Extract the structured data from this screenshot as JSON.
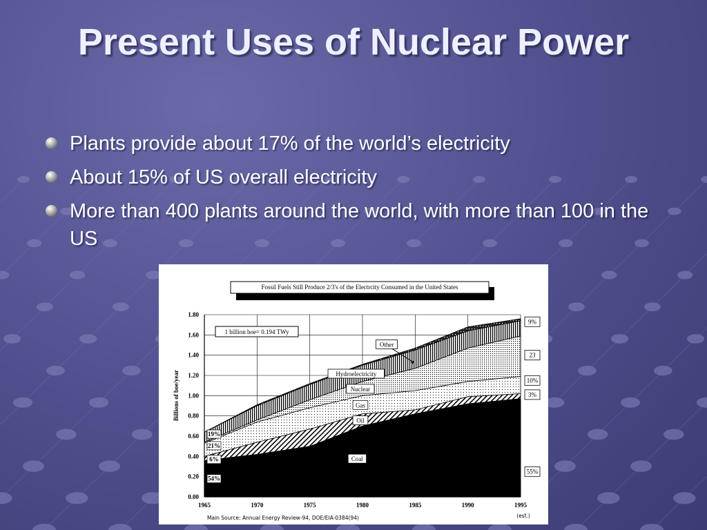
{
  "slide": {
    "title": "Present Uses of Nuclear Power",
    "bullets": [
      "Plants provide about 17% of the world’s electricity",
      "About 15% of US overall electricity",
      "More than 400 plants around the world, with more than 100 in the US"
    ]
  },
  "chart_data": {
    "type": "area",
    "stacked": true,
    "title": "Fossil Fuels Still Produce 2/3's of the Electrcity Consumed in the United States",
    "ylabel": "Billions of boe/year",
    "xlabel": "",
    "x": [
      1965,
      1970,
      1975,
      1980,
      1985,
      1990,
      1995
    ],
    "x_tick_labels": [
      "1965",
      "1970",
      "1975",
      "1980",
      "1985",
      "1990",
      "1995"
    ],
    "x_note": "(est.)",
    "ylim": [
      0,
      1.8
    ],
    "y_ticks": [
      "0.00",
      "0.20",
      "0.40",
      "0.60",
      "0.80",
      "1.00",
      "1.20",
      "1.40",
      "1.60",
      "1.80"
    ],
    "grid": true,
    "series": [
      {
        "name": "Coal",
        "values": [
          0.36,
          0.42,
          0.5,
          0.7,
          0.82,
          0.92,
          0.97
        ]
      },
      {
        "name": "Oil",
        "values": [
          0.04,
          0.12,
          0.17,
          0.12,
          0.04,
          0.07,
          0.05
        ]
      },
      {
        "name": "Gas",
        "values": [
          0.13,
          0.2,
          0.21,
          0.18,
          0.19,
          0.15,
          0.17
        ]
      },
      {
        "name": "Nuclear",
        "values": [
          0.01,
          0.02,
          0.08,
          0.14,
          0.22,
          0.33,
          0.4
        ]
      },
      {
        "name": "Hydroelectricity",
        "values": [
          0.1,
          0.14,
          0.15,
          0.16,
          0.18,
          0.17,
          0.15
        ]
      },
      {
        "name": "Other",
        "values": [
          0.0,
          0.01,
          0.01,
          0.01,
          0.02,
          0.04,
          0.02
        ]
      }
    ],
    "left_percent_labels": [
      "19%",
      "21%",
      "6%",
      "54%"
    ],
    "right_percent_labels": [
      "9%",
      "23",
      "10%",
      "3%",
      "55%"
    ],
    "annotation": "1 billion boe= 0.194 TWy",
    "source": "Main Source: Annual Energy Review-94, DOE/EIA-0384(94)"
  }
}
